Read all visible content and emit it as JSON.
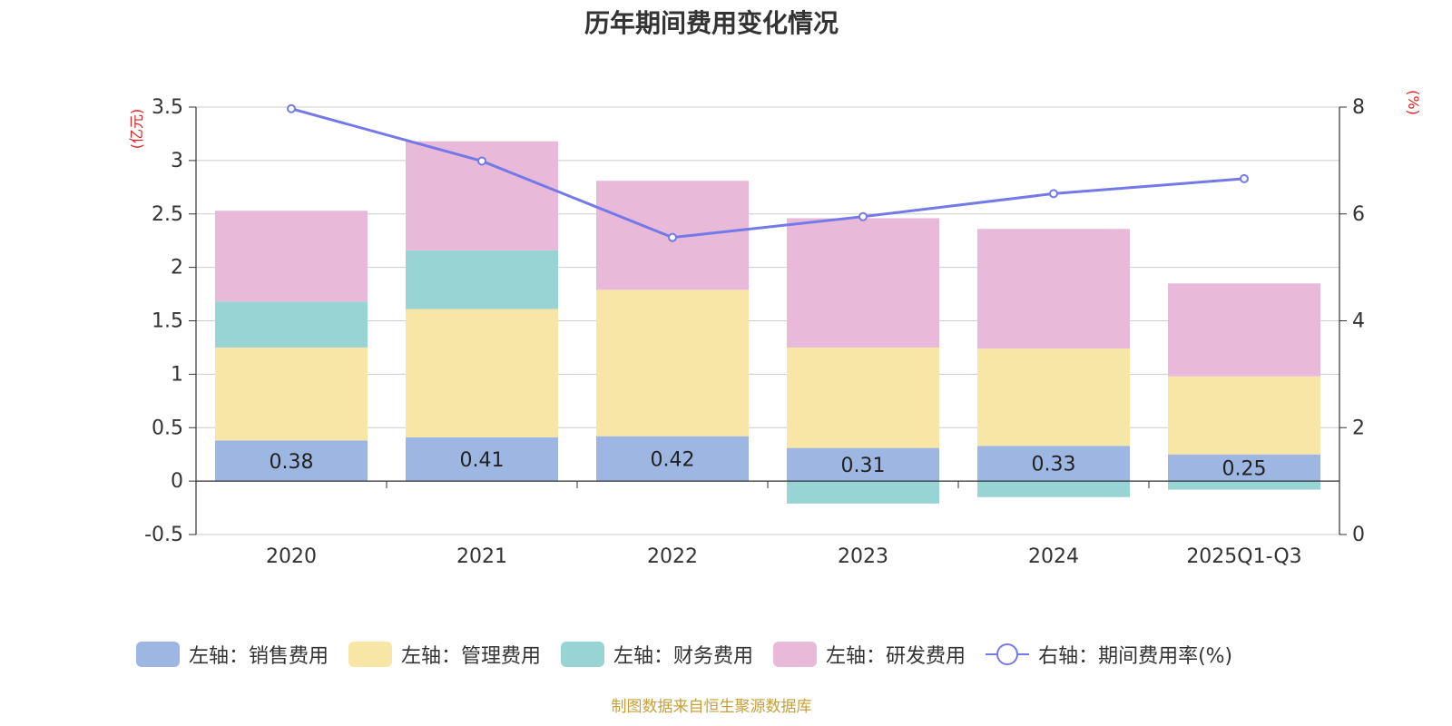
{
  "chart_data": {
    "type": "bar",
    "stacked": true,
    "title": "历年期间费用变化情况",
    "categories": [
      "2020",
      "2021",
      "2022",
      "2023",
      "2024",
      "2025Q1-Q3"
    ],
    "left_axis": {
      "label": "(亿元)",
      "ylim": [
        -0.5,
        3.5
      ],
      "ticks": [
        -0.5,
        0,
        0.5,
        1,
        1.5,
        2,
        2.5,
        3,
        3.5
      ]
    },
    "right_axis": {
      "label": "(%)",
      "ylim": [
        0,
        8
      ],
      "ticks": [
        0,
        2,
        4,
        6,
        8
      ]
    },
    "series": [
      {
        "name": "左轴：销售费用",
        "axis": "left",
        "type": "bar",
        "color": "#9db7e2",
        "values": [
          0.38,
          0.41,
          0.42,
          0.31,
          0.33,
          0.25
        ],
        "show_labels": true
      },
      {
        "name": "左轴：管理费用",
        "axis": "left",
        "type": "bar",
        "color": "#f7e6a6",
        "values": [
          0.87,
          1.2,
          1.37,
          0.94,
          0.91,
          0.73
        ]
      },
      {
        "name": "左轴：财务费用",
        "axis": "left",
        "type": "bar",
        "color": "#98d4d4",
        "values": [
          0.43,
          0.55,
          0.0,
          -0.21,
          -0.15,
          -0.08
        ]
      },
      {
        "name": "左轴：研发费用",
        "axis": "left",
        "type": "bar",
        "color": "#e8b9d9",
        "values": [
          0.85,
          1.02,
          1.02,
          1.21,
          1.12,
          0.87
        ]
      },
      {
        "name": "右轴：期间费用率(%)",
        "axis": "right",
        "type": "line",
        "color": "#7479e8",
        "values": [
          7.97,
          6.99,
          5.56,
          5.95,
          6.38,
          6.66
        ]
      }
    ]
  },
  "source_note": "制图数据来自恒生聚源数据库"
}
